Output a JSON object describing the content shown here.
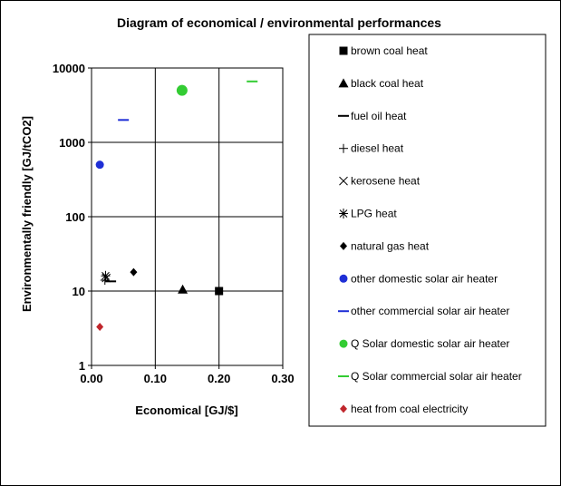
{
  "chart_data": {
    "type": "scatter",
    "title": "Diagram of economical / environmental performances",
    "xlabel": "Economical [GJ/$]",
    "ylabel": "Environmentally friendly [GJ/tCO2]",
    "xlim": [
      0,
      0.3
    ],
    "ylim": [
      1,
      10000
    ],
    "y_scale": "log",
    "x_ticks": [
      "0.00",
      "0.10",
      "0.20",
      "0.30"
    ],
    "y_ticks": [
      "1",
      "10",
      "100",
      "1000",
      "10000"
    ],
    "grid": true,
    "legend_position": "right",
    "series": [
      {
        "name": "brown coal heat",
        "marker": "square",
        "color": "#000000",
        "points": [
          {
            "x": 0.2,
            "y": 10
          }
        ]
      },
      {
        "name": "black coal heat",
        "marker": "triangle",
        "color": "#000000",
        "points": [
          {
            "x": 0.143,
            "y": 10.5
          }
        ]
      },
      {
        "name": "fuel oil heat",
        "marker": "dash",
        "color": "#000000",
        "points": [
          {
            "x": 0.03,
            "y": 13.5
          }
        ]
      },
      {
        "name": "diesel heat",
        "marker": "plus",
        "color": "#000000",
        "points": [
          {
            "x": 0.021,
            "y": 14
          }
        ]
      },
      {
        "name": "kerosene heat",
        "marker": "x",
        "color": "#000000",
        "points": [
          {
            "x": 0.023,
            "y": 15
          }
        ]
      },
      {
        "name": "LPG heat",
        "marker": "star",
        "color": "#000000",
        "points": [
          {
            "x": 0.022,
            "y": 16
          }
        ]
      },
      {
        "name": "natural gas heat",
        "marker": "diamond",
        "color": "#000000",
        "points": [
          {
            "x": 0.066,
            "y": 18
          }
        ]
      },
      {
        "name": "other domestic solar air heater",
        "marker": "circle",
        "color": "#1f2fd6",
        "points": [
          {
            "x": 0.013,
            "y": 500
          }
        ]
      },
      {
        "name": "other commercial solar air heater",
        "marker": "dash",
        "color": "#1f2fd6",
        "points": [
          {
            "x": 0.05,
            "y": 2000
          }
        ]
      },
      {
        "name": "Q Solar domestic solar air heater",
        "marker": "circle",
        "color": "#33cc33",
        "points": [
          {
            "x": 0.142,
            "y": 5000
          }
        ]
      },
      {
        "name": "Q Solar commercial solar air heater",
        "marker": "dash",
        "color": "#33cc33",
        "points": [
          {
            "x": 0.252,
            "y": 6600
          }
        ]
      },
      {
        "name": "heat from coal electricity",
        "marker": "diamond",
        "color": "#c0262c",
        "points": [
          {
            "x": 0.013,
            "y": 3.3
          }
        ]
      }
    ]
  }
}
